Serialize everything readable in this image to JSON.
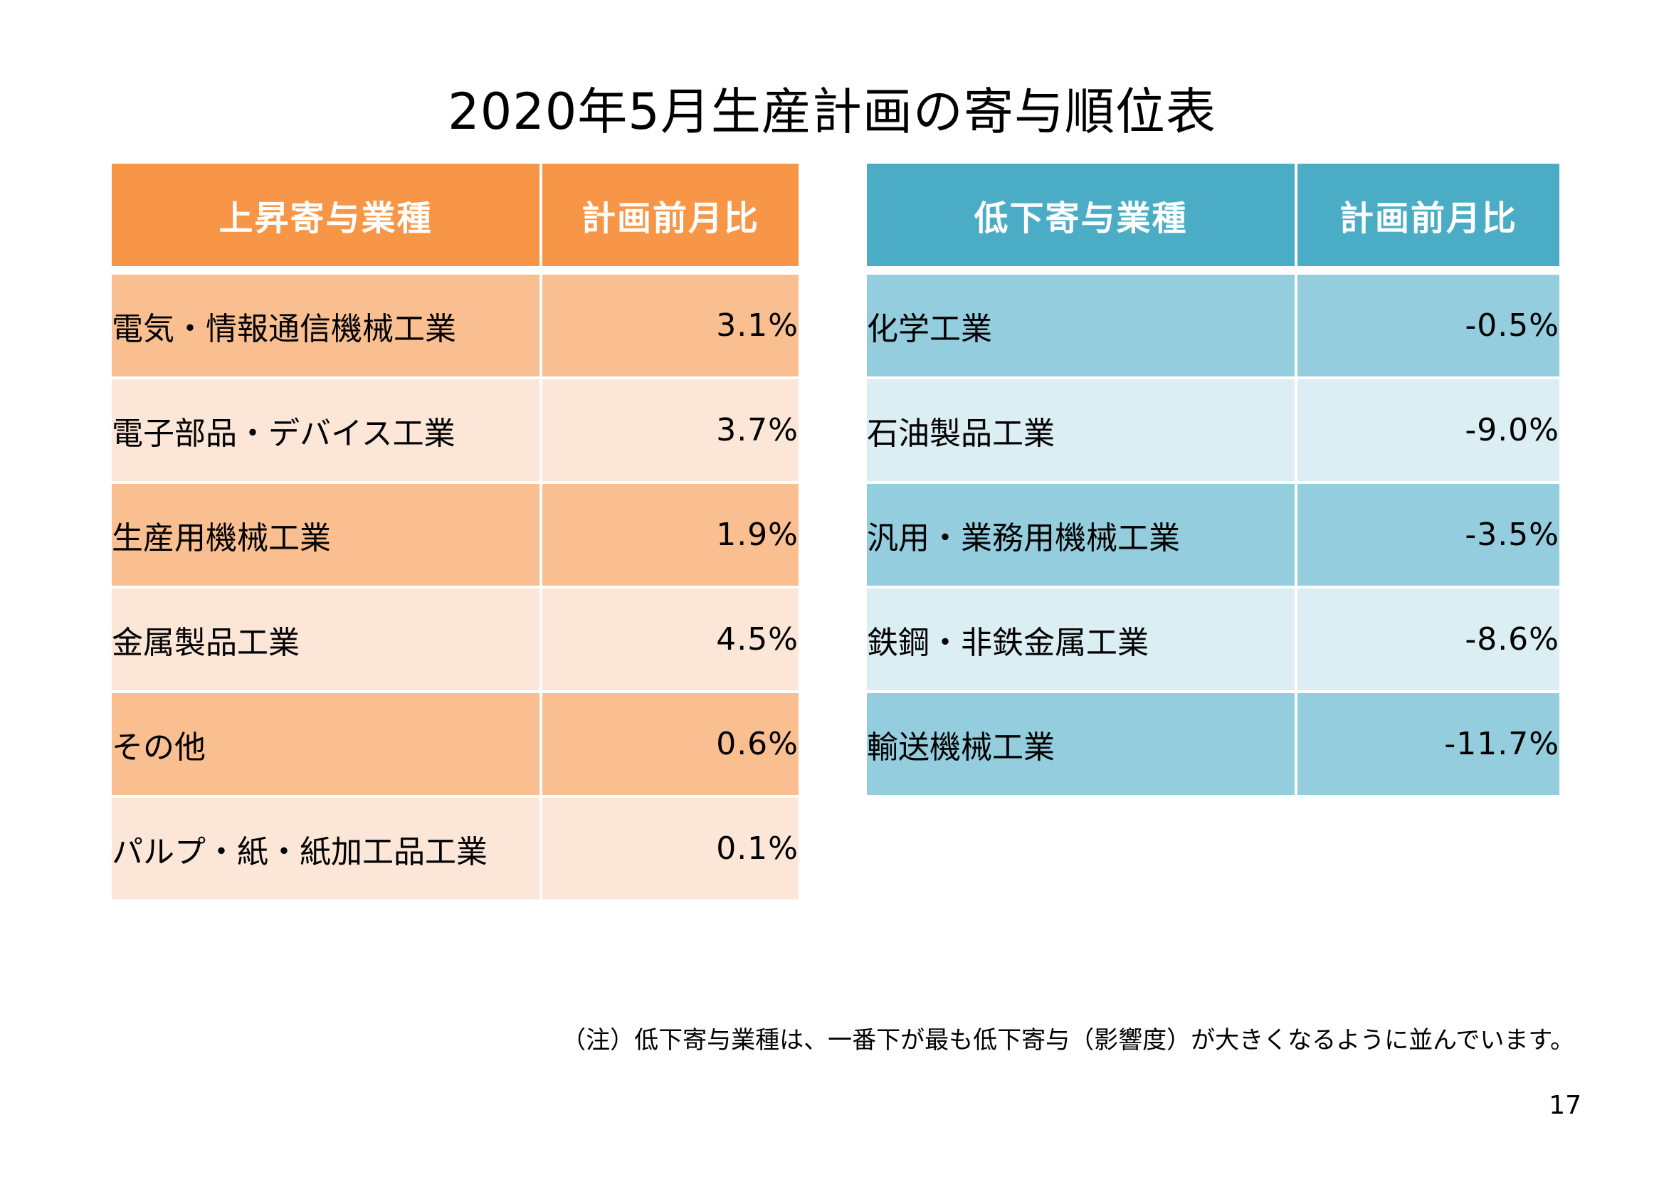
{
  "title": "2020年5月生産計画の寄与順位表",
  "up_table": {
    "header_industry": "上昇寄与業種",
    "header_ratio": "計画前月比",
    "rows": [
      {
        "industry": "電気・情報通信機械工業",
        "ratio": "3.1%"
      },
      {
        "industry": "電子部品・デバイス工業",
        "ratio": "3.7%"
      },
      {
        "industry": "生産用機械工業",
        "ratio": "1.9%"
      },
      {
        "industry": "金属製品工業",
        "ratio": "4.5%"
      },
      {
        "industry": "その他",
        "ratio": "0.6%"
      },
      {
        "industry": "パルプ・紙・紙加工品工業",
        "ratio": "0.1%"
      }
    ]
  },
  "down_table": {
    "header_industry": "低下寄与業種",
    "header_ratio": "計画前月比",
    "rows": [
      {
        "industry": "化学工業",
        "ratio": "-0.5%"
      },
      {
        "industry": "石油製品工業",
        "ratio": "-9.0%"
      },
      {
        "industry": "汎用・業務用機械工業",
        "ratio": "-3.5%"
      },
      {
        "industry": "鉄鋼・非鉄金属工業",
        "ratio": "-8.6%"
      },
      {
        "industry": "輸送機械工業",
        "ratio": "-11.7%"
      }
    ]
  },
  "note": "（注）低下寄与業種は、一番下が最も低下寄与（影響度）が大きくなるように並んでいます。",
  "page_number": "17",
  "colors": {
    "up_header": "#F79646",
    "up_row_dark": "#F9BF91",
    "up_row_light": "#FCE6D8",
    "down_header": "#4BACC6",
    "down_row_dark": "#94CDDD",
    "down_row_light": "#DBEEF3"
  }
}
